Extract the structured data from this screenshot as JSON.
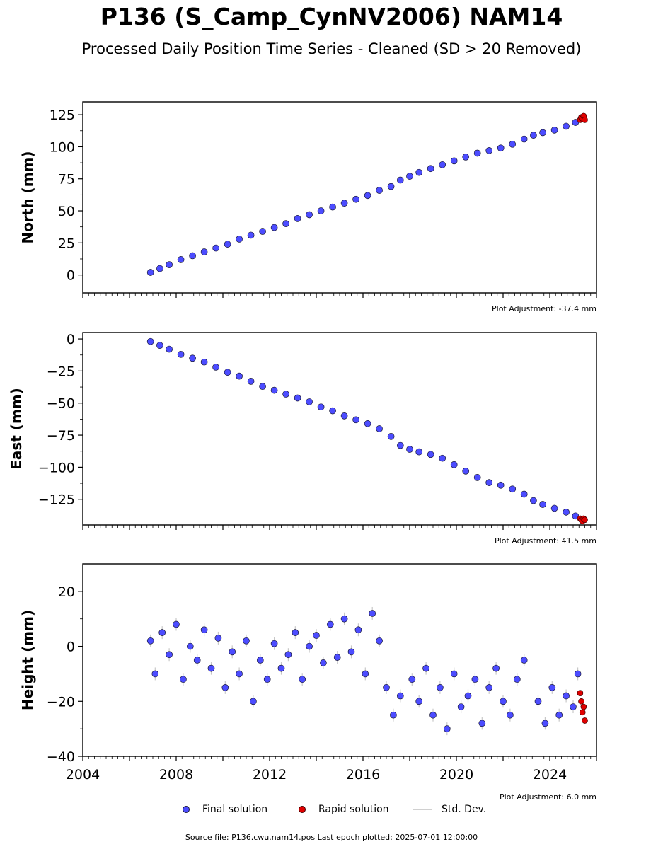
{
  "title": "P136 (S_Camp_CynNV2006) NAM14",
  "subtitle": "Processed Daily Position Time Series - Cleaned (SD > 20 Removed)",
  "source_text": "Source file: P136.cwu.nam14.pos  Last epoch plotted: 2025-07-01 12:00:00",
  "legend": {
    "final_label": "Final solution",
    "rapid_label": "Rapid solution",
    "std_label": "Std. Dev."
  },
  "colors": {
    "final": "#4c4cff",
    "final_edge": "#1a1a3a",
    "rapid": "#e00000",
    "std": "#c8c8c8"
  },
  "chart_data": [
    {
      "type": "scatter",
      "ylabel": "North (mm)",
      "adjustment": "Plot Adjustment: -37.4 mm",
      "xlim": [
        2004,
        2026
      ],
      "ylim": [
        -14,
        135
      ],
      "yticks": [
        0,
        25,
        50,
        75,
        100,
        125
      ],
      "ytick_labels": [
        "0",
        "25",
        "50",
        "75",
        "100",
        "125"
      ],
      "series": [
        {
          "kind": "final",
          "x": [
            2006.9,
            2007.3,
            2007.7,
            2008.2,
            2008.7,
            2009.2,
            2009.7,
            2010.2,
            2010.7,
            2011.2,
            2011.7,
            2012.2,
            2012.7,
            2013.2,
            2013.7,
            2014.2,
            2014.7,
            2015.2,
            2015.7,
            2016.2,
            2016.7,
            2017.2,
            2017.6,
            2018.0,
            2018.4,
            2018.9,
            2019.4,
            2019.9,
            2020.4,
            2020.9,
            2021.4,
            2021.9,
            2022.4,
            2022.9,
            2023.3,
            2023.7,
            2024.2,
            2024.7,
            2025.1
          ],
          "y": [
            2,
            5,
            8,
            12,
            15,
            18,
            21,
            24,
            28,
            31,
            34,
            37,
            40,
            44,
            47,
            50,
            53,
            56,
            59,
            62,
            66,
            69,
            74,
            77,
            80,
            83,
            86,
            89,
            92,
            95,
            97,
            99,
            102,
            106,
            109,
            111,
            113,
            116,
            119
          ]
        },
        {
          "kind": "rapid",
          "x": [
            2025.3,
            2025.35,
            2025.4,
            2025.45,
            2025.5
          ],
          "y": [
            121,
            123,
            122,
            124,
            121
          ]
        }
      ]
    },
    {
      "type": "scatter",
      "ylabel": "East (mm)",
      "adjustment": "Plot Adjustment: 41.5 mm",
      "xlim": [
        2004,
        2026
      ],
      "ylim": [
        -145,
        5
      ],
      "yticks": [
        0,
        -25,
        -50,
        -75,
        -100,
        -125
      ],
      "ytick_labels": [
        "0",
        "−25",
        "−50",
        "−75",
        "−100",
        "−125"
      ],
      "series": [
        {
          "kind": "final",
          "x": [
            2006.9,
            2007.3,
            2007.7,
            2008.2,
            2008.7,
            2009.2,
            2009.7,
            2010.2,
            2010.7,
            2011.2,
            2011.7,
            2012.2,
            2012.7,
            2013.2,
            2013.7,
            2014.2,
            2014.7,
            2015.2,
            2015.7,
            2016.2,
            2016.7,
            2017.2,
            2017.6,
            2018.0,
            2018.4,
            2018.9,
            2019.4,
            2019.9,
            2020.4,
            2020.9,
            2021.4,
            2021.9,
            2022.4,
            2022.9,
            2023.3,
            2023.7,
            2024.2,
            2024.7,
            2025.1
          ],
          "y": [
            -2,
            -5,
            -8,
            -12,
            -15,
            -18,
            -22,
            -26,
            -29,
            -33,
            -37,
            -40,
            -43,
            -46,
            -49,
            -53,
            -56,
            -60,
            -63,
            -66,
            -70,
            -76,
            -83,
            -86,
            -88,
            -90,
            -93,
            -98,
            -103,
            -108,
            -112,
            -114,
            -117,
            -121,
            -126,
            -129,
            -132,
            -135,
            -138
          ]
        },
        {
          "kind": "rapid",
          "x": [
            2025.3,
            2025.35,
            2025.4,
            2025.45,
            2025.5
          ],
          "y": [
            -140,
            -141,
            -142,
            -140,
            -141
          ]
        }
      ]
    },
    {
      "type": "scatter",
      "ylabel": "Height (mm)",
      "adjustment": "Plot Adjustment: 6.0 mm",
      "xlim": [
        2004,
        2026
      ],
      "ylim": [
        -40,
        30
      ],
      "yticks": [
        20,
        0,
        -20,
        -40
      ],
      "ytick_labels": [
        "20",
        "0",
        "−20",
        "−40"
      ],
      "xticks": [
        2004,
        2008,
        2012,
        2016,
        2020,
        2024
      ],
      "xtick_labels": [
        "2004",
        "2008",
        "2012",
        "2016",
        "2020",
        "2024"
      ],
      "series": [
        {
          "kind": "final",
          "x": [
            2006.9,
            2007.1,
            2007.4,
            2007.7,
            2008.0,
            2008.3,
            2008.6,
            2008.9,
            2009.2,
            2009.5,
            2009.8,
            2010.1,
            2010.4,
            2010.7,
            2011.0,
            2011.3,
            2011.6,
            2011.9,
            2012.2,
            2012.5,
            2012.8,
            2013.1,
            2013.4,
            2013.7,
            2014.0,
            2014.3,
            2014.6,
            2014.9,
            2015.2,
            2015.5,
            2015.8,
            2016.1,
            2016.4,
            2016.7,
            2017.0,
            2017.3,
            2017.6,
            2018.1,
            2018.4,
            2018.7,
            2019.0,
            2019.3,
            2019.6,
            2019.9,
            2020.2,
            2020.5,
            2020.8,
            2021.1,
            2021.4,
            2021.7,
            2022.0,
            2022.3,
            2022.6,
            2022.9,
            2023.5,
            2023.8,
            2024.1,
            2024.4,
            2024.7,
            2025.0,
            2025.2
          ],
          "y": [
            2,
            -10,
            5,
            -3,
            8,
            -12,
            0,
            -5,
            6,
            -8,
            3,
            -15,
            -2,
            -10,
            2,
            -20,
            -5,
            -12,
            1,
            -8,
            -3,
            5,
            -12,
            0,
            4,
            -6,
            8,
            -4,
            10,
            -2,
            6,
            -10,
            12,
            2,
            -15,
            -25,
            -18,
            -12,
            -20,
            -8,
            -25,
            -15,
            -30,
            -10,
            -22,
            -18,
            -12,
            -28,
            -15,
            -8,
            -20,
            -25,
            -12,
            -5,
            -20,
            -28,
            -15,
            -25,
            -18,
            -22,
            -10
          ]
        },
        {
          "kind": "rapid",
          "x": [
            2025.3,
            2025.35,
            2025.4,
            2025.45,
            2025.5
          ],
          "y": [
            -17,
            -20,
            -24,
            -22,
            -27
          ]
        }
      ]
    }
  ]
}
